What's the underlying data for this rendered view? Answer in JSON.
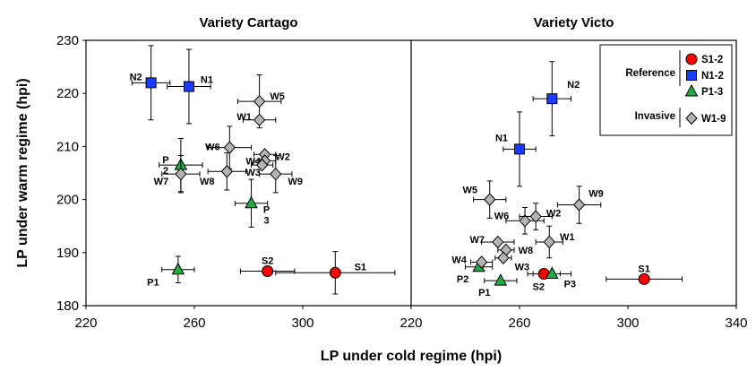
{
  "chart_data": [
    {
      "type": "scatter",
      "title": "Variety Cartago",
      "xlim": [
        220,
        340
      ],
      "ylim": [
        180,
        230
      ],
      "series": [
        {
          "group": "reference",
          "marker": "circle",
          "color": "#ff0000",
          "points": [
            {
              "label": "S2",
              "x": 287,
              "y": 186.5,
              "xerr": 10,
              "yerr": 0
            },
            {
              "label": "S1",
              "x": 312,
              "y": 186.2,
              "xerr": 22,
              "yerr": 4
            }
          ]
        },
        {
          "group": "reference",
          "marker": "square",
          "color": "#1a3cff",
          "points": [
            {
              "label": "N2",
              "x": 244,
              "y": 222,
              "xerr": 7,
              "yerr": 7
            },
            {
              "label": "N1",
              "x": 258,
              "y": 221.3,
              "xerr": 8,
              "yerr": 7
            }
          ]
        },
        {
          "group": "reference",
          "marker": "triangle",
          "color": "#22aa44",
          "points": [
            {
              "label": "P\n2",
              "x": 255,
              "y": 206.5,
              "xerr": 8,
              "yerr": 5
            },
            {
              "label": "P\n3",
              "x": 281,
              "y": 199.3,
              "xerr": 6,
              "yerr": 4.5
            },
            {
              "label": "P1",
              "x": 254,
              "y": 186.8,
              "xerr": 6,
              "yerr": 2.5
            }
          ]
        },
        {
          "group": "invasive",
          "marker": "diamond",
          "color": "#b4b4b4",
          "points": [
            {
              "label": "W5",
              "x": 284,
              "y": 218.5,
              "xerr": 8,
              "yerr": 5
            },
            {
              "label": "W1",
              "x": 284,
              "y": 215,
              "xerr": 6,
              "yerr": 0
            },
            {
              "label": "W6",
              "x": 273,
              "y": 209.8,
              "xerr": 8,
              "yerr": 4
            },
            {
              "label": "W2",
              "x": 286,
              "y": 208.5,
              "xerr": 4,
              "yerr": 0
            },
            {
              "label": "W4",
              "x": 286,
              "y": 207.3,
              "xerr": 4,
              "yerr": 0
            },
            {
              "label": "W3",
              "x": 285,
              "y": 206.5,
              "xerr": 4,
              "yerr": 0
            },
            {
              "label": "W8",
              "x": 272,
              "y": 205.3,
              "xerr": 7,
              "yerr": 3.5
            },
            {
              "label": "W7",
              "x": 255,
              "y": 204.8,
              "xerr": 7,
              "yerr": 3.5
            },
            {
              "label": "W9",
              "x": 290,
              "y": 204.8,
              "xerr": 6,
              "yerr": 3.5
            }
          ]
        }
      ]
    },
    {
      "type": "scatter",
      "title": "Variety Victo",
      "xlim": [
        220,
        340
      ],
      "ylim": [
        180,
        230
      ],
      "series": [
        {
          "group": "reference",
          "marker": "circle",
          "color": "#ff0000",
          "points": [
            {
              "label": "S2",
              "x": 269,
              "y": 186,
              "xerr": 6,
              "yerr": 0
            },
            {
              "label": "S1",
              "x": 306,
              "y": 185,
              "xerr": 14,
              "yerr": 0
            }
          ]
        },
        {
          "group": "reference",
          "marker": "square",
          "color": "#1a3cff",
          "points": [
            {
              "label": "N2",
              "x": 272,
              "y": 219,
              "xerr": 7,
              "yerr": 7
            },
            {
              "label": "N1",
              "x": 260,
              "y": 209.5,
              "xerr": 6,
              "yerr": 7
            }
          ]
        },
        {
          "group": "reference",
          "marker": "triangle",
          "color": "#22aa44",
          "points": [
            {
              "label": "P2",
              "x": 245,
              "y": 187.3,
              "xerr": 5,
              "yerr": 0
            },
            {
              "label": "P1",
              "x": 253,
              "y": 184.7,
              "xerr": 6,
              "yerr": 0
            },
            {
              "label": "P3",
              "x": 272,
              "y": 186,
              "xerr": 7,
              "yerr": 0
            }
          ]
        },
        {
          "group": "invasive",
          "marker": "diamond",
          "color": "#b4b4b4",
          "points": [
            {
              "label": "W5",
              "x": 249,
              "y": 200,
              "xerr": 6,
              "yerr": 3.5
            },
            {
              "label": "W9",
              "x": 282,
              "y": 199,
              "xerr": 8,
              "yerr": 3.5
            },
            {
              "label": "W6",
              "x": 262,
              "y": 196,
              "xerr": 7,
              "yerr": 2.5
            },
            {
              "label": "W2",
              "x": 266,
              "y": 196.8,
              "xerr": 6,
              "yerr": 2.5
            },
            {
              "label": "W1",
              "x": 271,
              "y": 192,
              "xerr": 5,
              "yerr": 3
            },
            {
              "label": "W7",
              "x": 252,
              "y": 192,
              "xerr": 6,
              "yerr": 0
            },
            {
              "label": "W8",
              "x": 255,
              "y": 190.5,
              "xerr": 3,
              "yerr": 0
            },
            {
              "label": "W3",
              "x": 254,
              "y": 189,
              "xerr": 3,
              "yerr": 0
            },
            {
              "label": "W4",
              "x": 246,
              "y": 188.2,
              "xerr": 4,
              "yerr": 0
            }
          ]
        }
      ]
    }
  ],
  "axes": {
    "xlabel": "LP under cold regime (hpi)",
    "ylabel": "LP under warm regime (hpi)",
    "xticks": [
      "220",
      "260",
      "300",
      "220",
      "260",
      "300",
      "340"
    ],
    "yticks": [
      "180",
      "190",
      "200",
      "210",
      "220",
      "230"
    ]
  },
  "legend": {
    "groups": [
      {
        "label": "Reference",
        "items": [
          {
            "marker": "circle",
            "color": "#ff0000",
            "label": "S1-2"
          },
          {
            "marker": "square",
            "color": "#1a3cff",
            "label": "N1-2"
          },
          {
            "marker": "triangle",
            "color": "#22aa44",
            "label": "P1-3"
          }
        ]
      },
      {
        "label": "Invasive",
        "items": [
          {
            "marker": "diamond",
            "color": "#b4b4b4",
            "label": "W1-9"
          }
        ]
      }
    ],
    "placement": "top-right"
  }
}
